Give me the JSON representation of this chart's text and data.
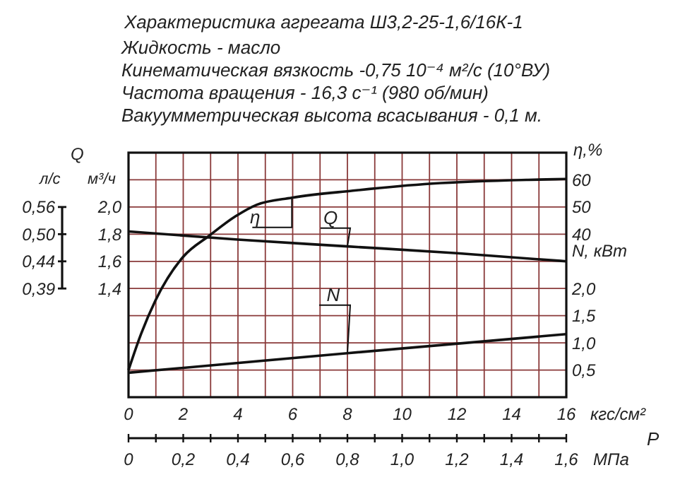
{
  "chart_data": {
    "type": "line",
    "title": "Характеристика агрегата Ш3,2-25-1,6/16К-1",
    "annotations": [
      "Жидкость - масло",
      "Кинематическая вязкость -0,75 10⁻⁴ м²/с (10°ВУ)",
      "Частота вращения - 16,3 с⁻¹ (980 об/мин)",
      "Вакуумметрическая высота всасывания - 0,1 м.",
      "Q",
      "P",
      "л/с",
      "0,56",
      "0,50",
      "0,44",
      "0,39"
    ],
    "xlabel": "кгс/см²",
    "xlim": [
      0,
      16
    ],
    "xticks": [
      0,
      {
        "value": 1,
        "label": null
      },
      2,
      {
        "value": 3,
        "label": null
      },
      4,
      {
        "value": 5,
        "label": null
      },
      6,
      {
        "value": 7,
        "label": null
      },
      8,
      {
        "value": 9,
        "label": null
      },
      10,
      {
        "value": 11,
        "label": null
      },
      12,
      {
        "value": 13,
        "label": null
      },
      14,
      {
        "value": 15,
        "label": null
      },
      16
    ],
    "x2label": "МПа",
    "x2lim": [
      0,
      1.6
    ],
    "x2ticks": [
      0,
      {
        "value": 0.1,
        "label": null
      },
      {
        "value": 0.2,
        "label": "0,2"
      },
      {
        "value": 0.3,
        "label": null
      },
      {
        "value": 0.4,
        "label": "0,4"
      },
      {
        "value": 0.5,
        "label": null
      },
      {
        "value": 0.6,
        "label": "0,6"
      },
      {
        "value": 0.7,
        "label": null
      },
      {
        "value": 0.8,
        "label": "0,8"
      },
      {
        "value": 0.9,
        "label": null
      },
      {
        "value": 1.0,
        "label": "1,0"
      },
      {
        "value": 1.1,
        "label": null
      },
      {
        "value": 1.2,
        "label": "1,2"
      },
      {
        "value": 1.3,
        "label": null
      },
      {
        "value": 1.4,
        "label": "1,4"
      },
      {
        "value": 1.5,
        "label": null
      },
      {
        "value": 1.6,
        "label": "1,6"
      }
    ],
    "ylabel": "м³/ч",
    "ylim": [
      0.6,
      2.4
    ],
    "yticks": [
      {
        "value": 0.6,
        "label": null
      },
      {
        "value": 0.8,
        "label": null
      },
      {
        "value": 1.0,
        "label": null
      },
      {
        "value": 1.2,
        "label": null
      },
      {
        "value": 1.4,
        "label": "1,4"
      },
      {
        "value": 1.6,
        "label": "1,6"
      },
      {
        "value": 1.8,
        "label": "1,8"
      },
      {
        "value": 2.0,
        "label": "2,0"
      },
      {
        "value": 2.2,
        "label": null
      },
      {
        "value": 2.4,
        "label": null
      }
    ],
    "y2label": "η,%",
    "y2lim": [
      -20,
      70
    ],
    "y2ticks": [
      {
        "value": 40,
        "label": "40"
      },
      {
        "value": 50,
        "label": "50"
      },
      {
        "value": 60,
        "label": "60"
      }
    ],
    "y3label": "N, кВт",
    "y3lim": [
      0,
      4.5
    ],
    "y3ticks": [
      {
        "value": 0.5,
        "label": "0,5"
      },
      {
        "value": 1.0,
        "label": "1,0"
      },
      {
        "value": 1.5,
        "label": "1,5"
      },
      {
        "value": 2.0,
        "label": "2,0"
      }
    ],
    "grid": true,
    "series": [
      {
        "name": "η",
        "color": "#111111",
        "axis": "y2",
        "x": [
          0,
          0.46,
          0.98,
          2.0,
          2.96,
          3.9,
          4.68,
          5.97,
          8.2,
          11.1,
          14.6,
          16
        ],
        "values": [
          -10,
          3.3,
          15.5,
          31.7,
          39.5,
          46.5,
          50.8,
          53.4,
          56,
          58.6,
          60,
          60.3
        ]
      },
      {
        "name": "Q",
        "color": "#111111",
        "axis": "y",
        "x": [
          0,
          4,
          8,
          12,
          16
        ],
        "values": [
          1.82,
          1.76,
          1.71,
          1.66,
          1.6
        ]
      },
      {
        "name": "N",
        "color": "#111111",
        "axis": "y3",
        "x": [
          0,
          8,
          16
        ],
        "values": [
          0.45,
          0.81,
          1.16
        ]
      }
    ]
  }
}
